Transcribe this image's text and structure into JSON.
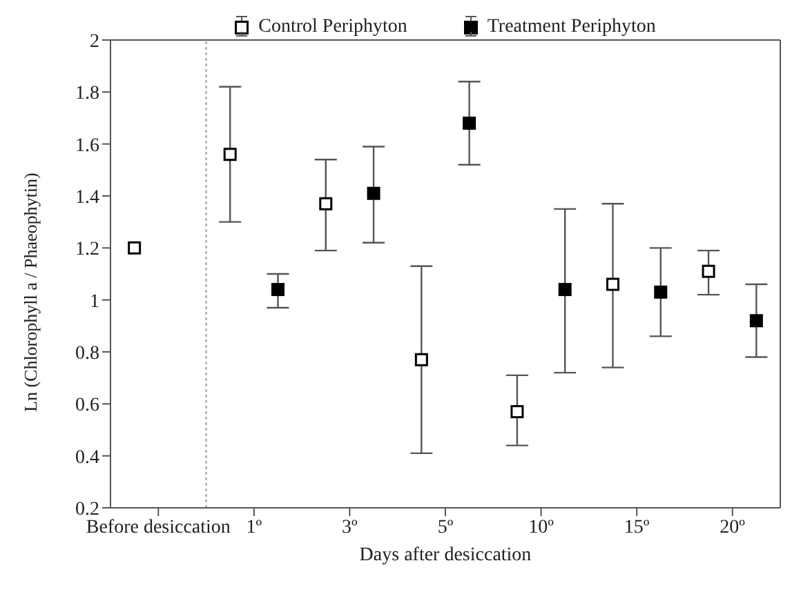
{
  "chart_data": {
    "type": "scatter",
    "xlabel": "Days after desiccation",
    "ylabel": "Ln (Chlorophyll a / Phaeophytin)",
    "categories": [
      "Before desiccation",
      "1º",
      "3º",
      "5º",
      "10º",
      "15º",
      "20º"
    ],
    "ylim": [
      0.2,
      2.0
    ],
    "yticks": [
      0.2,
      0.4,
      0.6,
      0.8,
      1.0,
      1.2,
      1.4,
      1.6,
      1.8,
      2.0
    ],
    "series": [
      {
        "name": "Control Periphyton",
        "color": "#ffffff",
        "values": [
          1.2,
          1.56,
          1.37,
          0.77,
          0.57,
          1.06,
          1.11
        ],
        "errors": [
          null,
          [
            1.3,
            1.82
          ],
          [
            1.19,
            1.54
          ],
          [
            0.41,
            1.13
          ],
          [
            0.44,
            0.71
          ],
          [
            0.74,
            1.37
          ],
          [
            1.02,
            1.19
          ]
        ]
      },
      {
        "name": "Treatment Periphyton",
        "color": "#000000",
        "values": [
          null,
          1.04,
          1.41,
          1.68,
          1.04,
          1.03,
          0.92
        ],
        "errors": [
          null,
          [
            0.97,
            1.1
          ],
          [
            1.22,
            1.59
          ],
          [
            1.52,
            1.84
          ],
          [
            0.72,
            1.35
          ],
          [
            0.86,
            1.2
          ],
          [
            0.78,
            1.06
          ]
        ]
      }
    ],
    "marker": "square",
    "legend": "top"
  }
}
